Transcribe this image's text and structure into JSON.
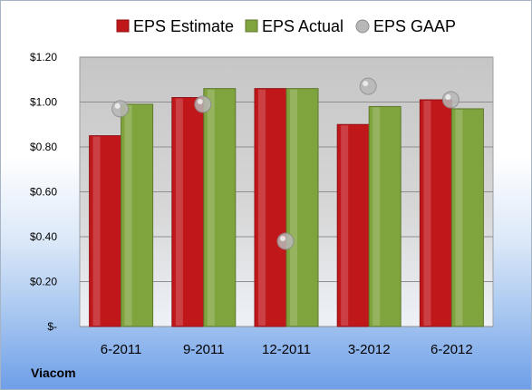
{
  "chart_data": {
    "type": "bar",
    "categories": [
      "6-2011",
      "9-2011",
      "12-2011",
      "3-2012",
      "6-2012"
    ],
    "series": [
      {
        "name": "EPS Estimate",
        "kind": "bar",
        "color": "#c0171b",
        "values": [
          0.85,
          1.02,
          1.06,
          0.9,
          1.01
        ]
      },
      {
        "name": "EPS Actual",
        "kind": "bar",
        "color": "#7fa33d",
        "values": [
          0.99,
          1.06,
          1.06,
          0.98,
          0.97
        ]
      },
      {
        "name": "EPS GAAP",
        "kind": "scatter",
        "color": "#b8b8b8",
        "values": [
          0.97,
          0.99,
          0.38,
          1.07,
          1.01
        ]
      }
    ],
    "ylim": [
      0,
      1.2
    ],
    "yticks": [
      0,
      0.2,
      0.4,
      0.6,
      0.8,
      1.0,
      1.2
    ],
    "ytick_labels": [
      "$-",
      "$0.20",
      "$0.40",
      "$0.60",
      "$0.80",
      "$1.00",
      "$1.20"
    ],
    "grid": true,
    "legend": "top"
  },
  "footer": {
    "company": "Viacom"
  }
}
